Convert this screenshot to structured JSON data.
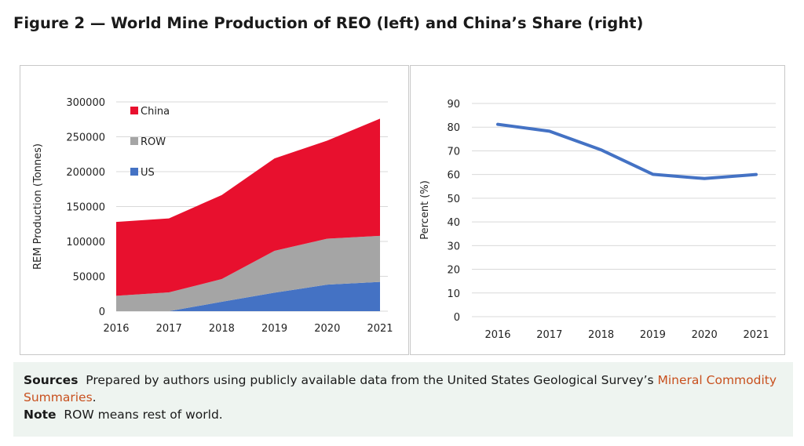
{
  "figure_title": "Figure 2 — World Mine Production of REO (left) and China’s Share (right)",
  "chart_data": [
    {
      "type": "area",
      "stacked": true,
      "categories": [
        "2016",
        "2017",
        "2018",
        "2019",
        "2020",
        "2021"
      ],
      "ylabel": "REM Production (Tonnes)",
      "ylim": [
        0,
        300000
      ],
      "yticks": [
        "0",
        "50000",
        "100000",
        "150000",
        "200000",
        "250000",
        "300000"
      ],
      "grid": true,
      "legend": "top-left",
      "series": [
        {
          "name": "US",
          "color": "#4472c4",
          "values": [
            0,
            0,
            13500,
            26500,
            38000,
            42000
          ]
        },
        {
          "name": "ROW",
          "color": "#a5a5a5",
          "values": [
            22000,
            27000,
            32500,
            60000,
            66000,
            66000
          ]
        },
        {
          "name": "China",
          "color": "#e8102e",
          "values": [
            106000,
            106000,
            120500,
            132500,
            140500,
            168000
          ]
        }
      ]
    },
    {
      "type": "line",
      "categories": [
        "2016",
        "2017",
        "2018",
        "2019",
        "2020",
        "2021"
      ],
      "ylabel": "Percent (%)",
      "ylim": [
        0,
        90
      ],
      "yticks": [
        "0",
        "10",
        "20",
        "30",
        "40",
        "50",
        "60",
        "70",
        "80",
        "90"
      ],
      "grid": true,
      "series": [
        {
          "color": "#4472c4",
          "values": [
            81.2,
            78.3,
            70.4,
            60.1,
            58.3,
            60.0
          ]
        }
      ]
    }
  ],
  "footer": {
    "sources_label": "Sources",
    "sources_text": "Prepared by authors using publicly available data from the United States Geological Survey’s ",
    "link_text": "Mineral Commodity Summaries",
    "period": ".",
    "note_label": "Note",
    "note_text": "ROW means rest of world."
  }
}
